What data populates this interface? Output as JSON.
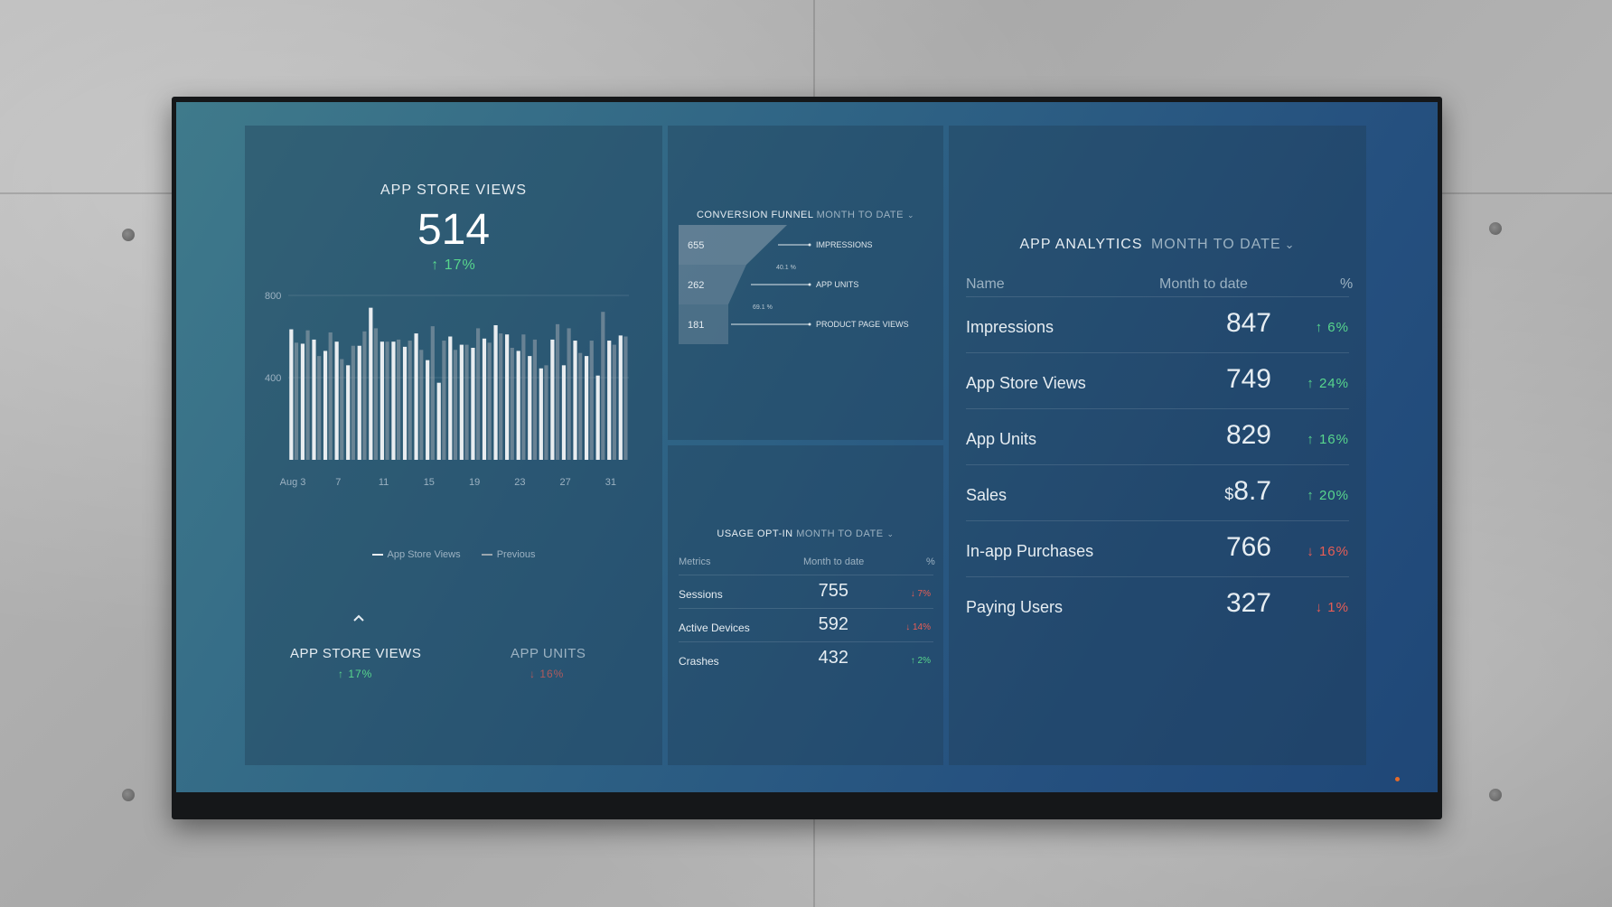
{
  "app_store_views": {
    "title": "APP STORE VIEWS",
    "value": "514",
    "change": "↑ 17%",
    "legend": {
      "current": "App Store Views",
      "previous": "Previous"
    },
    "switcher": [
      {
        "label": "APP STORE VIEWS",
        "change": "↑ 17%"
      },
      {
        "label": "APP UNITS",
        "change": "↓ 16%"
      }
    ]
  },
  "chart_data": {
    "type": "bar",
    "ylim": [
      0,
      800
    ],
    "y_ticks": [
      "800",
      "400"
    ],
    "x_ticks": [
      "Aug 3",
      "7",
      "11",
      "15",
      "19",
      "23",
      "27",
      "31"
    ],
    "series": [
      {
        "name": "App Store Views",
        "values": [
          635,
          565,
          585,
          530,
          575,
          460,
          555,
          740,
          575,
          575,
          550,
          615,
          485,
          375,
          600,
          560,
          545,
          590,
          655,
          610,
          530,
          505,
          445,
          585,
          460,
          580,
          505,
          410,
          580,
          605
        ]
      },
      {
        "name": "Previous",
        "values": [
          570,
          630,
          505,
          620,
          490,
          555,
          625,
          640,
          575,
          585,
          580,
          535,
          650,
          580,
          535,
          560,
          640,
          570,
          615,
          545,
          610,
          585,
          460,
          660,
          640,
          520,
          580,
          720,
          560,
          600
        ]
      }
    ]
  },
  "conversion_funnel": {
    "title": "CONVERSION FUNNEL",
    "period": "MONTH TO DATE",
    "stages": [
      {
        "value": "655",
        "label": "IMPRESSIONS"
      },
      {
        "value": "262",
        "label": "APP UNITS"
      },
      {
        "value": "181",
        "label": "PRODUCT PAGE VIEWS"
      }
    ],
    "rates": [
      "40.1 %",
      "69.1 %"
    ]
  },
  "usage_opt_in": {
    "title": "USAGE OPT-IN",
    "period": "MONTH TO DATE",
    "columns": {
      "name": "Metrics",
      "value": "Month to date",
      "pct": "%"
    },
    "rows": [
      {
        "name": "Sessions",
        "value": "755",
        "pct": "↓ 7%"
      },
      {
        "name": "Active Devices",
        "value": "592",
        "pct": "↓ 14%"
      },
      {
        "name": "Crashes",
        "value": "432",
        "pct": "↑ 2%"
      }
    ]
  },
  "app_analytics": {
    "title": "APP ANALYTICS",
    "period": "MONTH TO DATE",
    "columns": {
      "name": "Name",
      "value": "Month to date",
      "pct": "%"
    },
    "rows": [
      {
        "name": "Impressions",
        "prefix": "",
        "value": "847",
        "pct": "↑ 6%"
      },
      {
        "name": "App Store Views",
        "prefix": "",
        "value": "749",
        "pct": "↑ 24%"
      },
      {
        "name": "App Units",
        "prefix": "",
        "value": "829",
        "pct": "↑ 16%"
      },
      {
        "name": "Sales",
        "prefix": "$",
        "value": "8.7",
        "pct": "↑ 20%"
      },
      {
        "name": "In-app Purchases",
        "prefix": "",
        "value": "766",
        "pct": "↓ 16%"
      },
      {
        "name": "Paying Users",
        "prefix": "",
        "value": "327",
        "pct": "↓ 1%"
      }
    ]
  },
  "colors": {
    "up": "#58d68d",
    "down": "#e85d55",
    "bar_current": "#e9edf0",
    "bar_previous": "#9aa6ae"
  }
}
